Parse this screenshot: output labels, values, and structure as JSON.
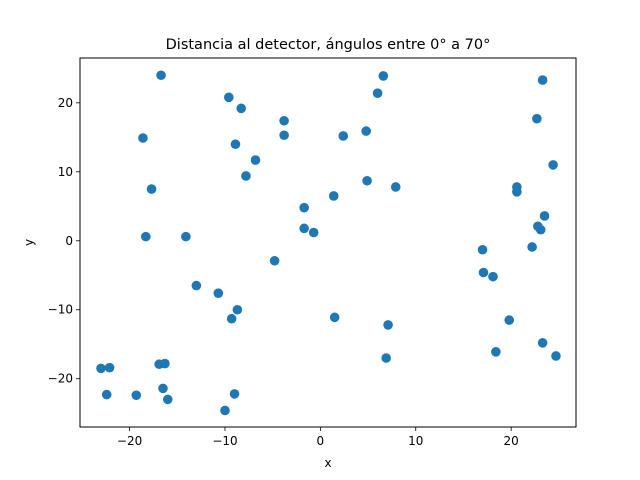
{
  "chart_data": {
    "type": "scatter",
    "title": "Distancia al detector, ángulos entre 0° a 70°",
    "xlabel": "x",
    "ylabel": "y",
    "xlim": [
      -25.2,
      26.8
    ],
    "ylim": [
      -27.0,
      26.5
    ],
    "xticks": [
      -20,
      -10,
      0,
      10,
      20
    ],
    "yticks": [
      -20,
      -10,
      0,
      10,
      20
    ],
    "xtick_labels": [
      "−20",
      "−10",
      "0",
      "10",
      "20"
    ],
    "ytick_labels": [
      "−20",
      "−10",
      "0",
      "10",
      "20"
    ],
    "grid": false,
    "color": "#1f77b4",
    "points": [
      {
        "x": -16.7,
        "y": 24.0
      },
      {
        "x": -9.6,
        "y": 20.8
      },
      {
        "x": -8.3,
        "y": 19.2
      },
      {
        "x": -18.6,
        "y": 14.9
      },
      {
        "x": -3.8,
        "y": 17.4
      },
      {
        "x": -3.8,
        "y": 15.3
      },
      {
        "x": -8.9,
        "y": 14.0
      },
      {
        "x": -6.8,
        "y": 11.7
      },
      {
        "x": -7.8,
        "y": 9.4
      },
      {
        "x": -17.7,
        "y": 7.5
      },
      {
        "x": -18.3,
        "y": 0.6
      },
      {
        "x": -14.1,
        "y": 0.6
      },
      {
        "x": -4.8,
        "y": -2.9
      },
      {
        "x": -13.0,
        "y": -6.5
      },
      {
        "x": -10.7,
        "y": -7.6
      },
      {
        "x": -8.7,
        "y": -10.0
      },
      {
        "x": -9.3,
        "y": -11.3
      },
      {
        "x": -16.9,
        "y": -17.9
      },
      {
        "x": -16.3,
        "y": -17.8
      },
      {
        "x": -23.0,
        "y": -18.5
      },
      {
        "x": -22.1,
        "y": -18.4
      },
      {
        "x": -16.5,
        "y": -21.4
      },
      {
        "x": -22.4,
        "y": -22.3
      },
      {
        "x": -19.3,
        "y": -22.4
      },
      {
        "x": -16.0,
        "y": -23.0
      },
      {
        "x": -9.0,
        "y": -22.2
      },
      {
        "x": -10.0,
        "y": -24.6
      },
      {
        "x": 6.6,
        "y": 23.9
      },
      {
        "x": 6.0,
        "y": 21.4
      },
      {
        "x": 2.4,
        "y": 15.2
      },
      {
        "x": 4.8,
        "y": 15.9
      },
      {
        "x": 4.9,
        "y": 8.7
      },
      {
        "x": 7.9,
        "y": 7.8
      },
      {
        "x": 1.4,
        "y": 6.5
      },
      {
        "x": -1.7,
        "y": 4.8
      },
      {
        "x": -1.7,
        "y": 1.8
      },
      {
        "x": -0.7,
        "y": 1.2
      },
      {
        "x": 1.5,
        "y": -11.1
      },
      {
        "x": 7.1,
        "y": -12.2
      },
      {
        "x": 6.9,
        "y": -17.0
      },
      {
        "x": 23.3,
        "y": 23.3
      },
      {
        "x": 22.7,
        "y": 17.7
      },
      {
        "x": 24.4,
        "y": 11.0
      },
      {
        "x": 20.6,
        "y": 7.8
      },
      {
        "x": 20.6,
        "y": 7.1
      },
      {
        "x": 23.5,
        "y": 3.6
      },
      {
        "x": 22.8,
        "y": 2.1
      },
      {
        "x": 23.1,
        "y": 1.6
      },
      {
        "x": 22.2,
        "y": -0.9
      },
      {
        "x": 17.0,
        "y": -1.3
      },
      {
        "x": 17.1,
        "y": -4.6
      },
      {
        "x": 18.1,
        "y": -5.2
      },
      {
        "x": 19.8,
        "y": -11.5
      },
      {
        "x": 18.4,
        "y": -16.1
      },
      {
        "x": 23.3,
        "y": -14.8
      },
      {
        "x": 24.7,
        "y": -16.7
      }
    ]
  }
}
